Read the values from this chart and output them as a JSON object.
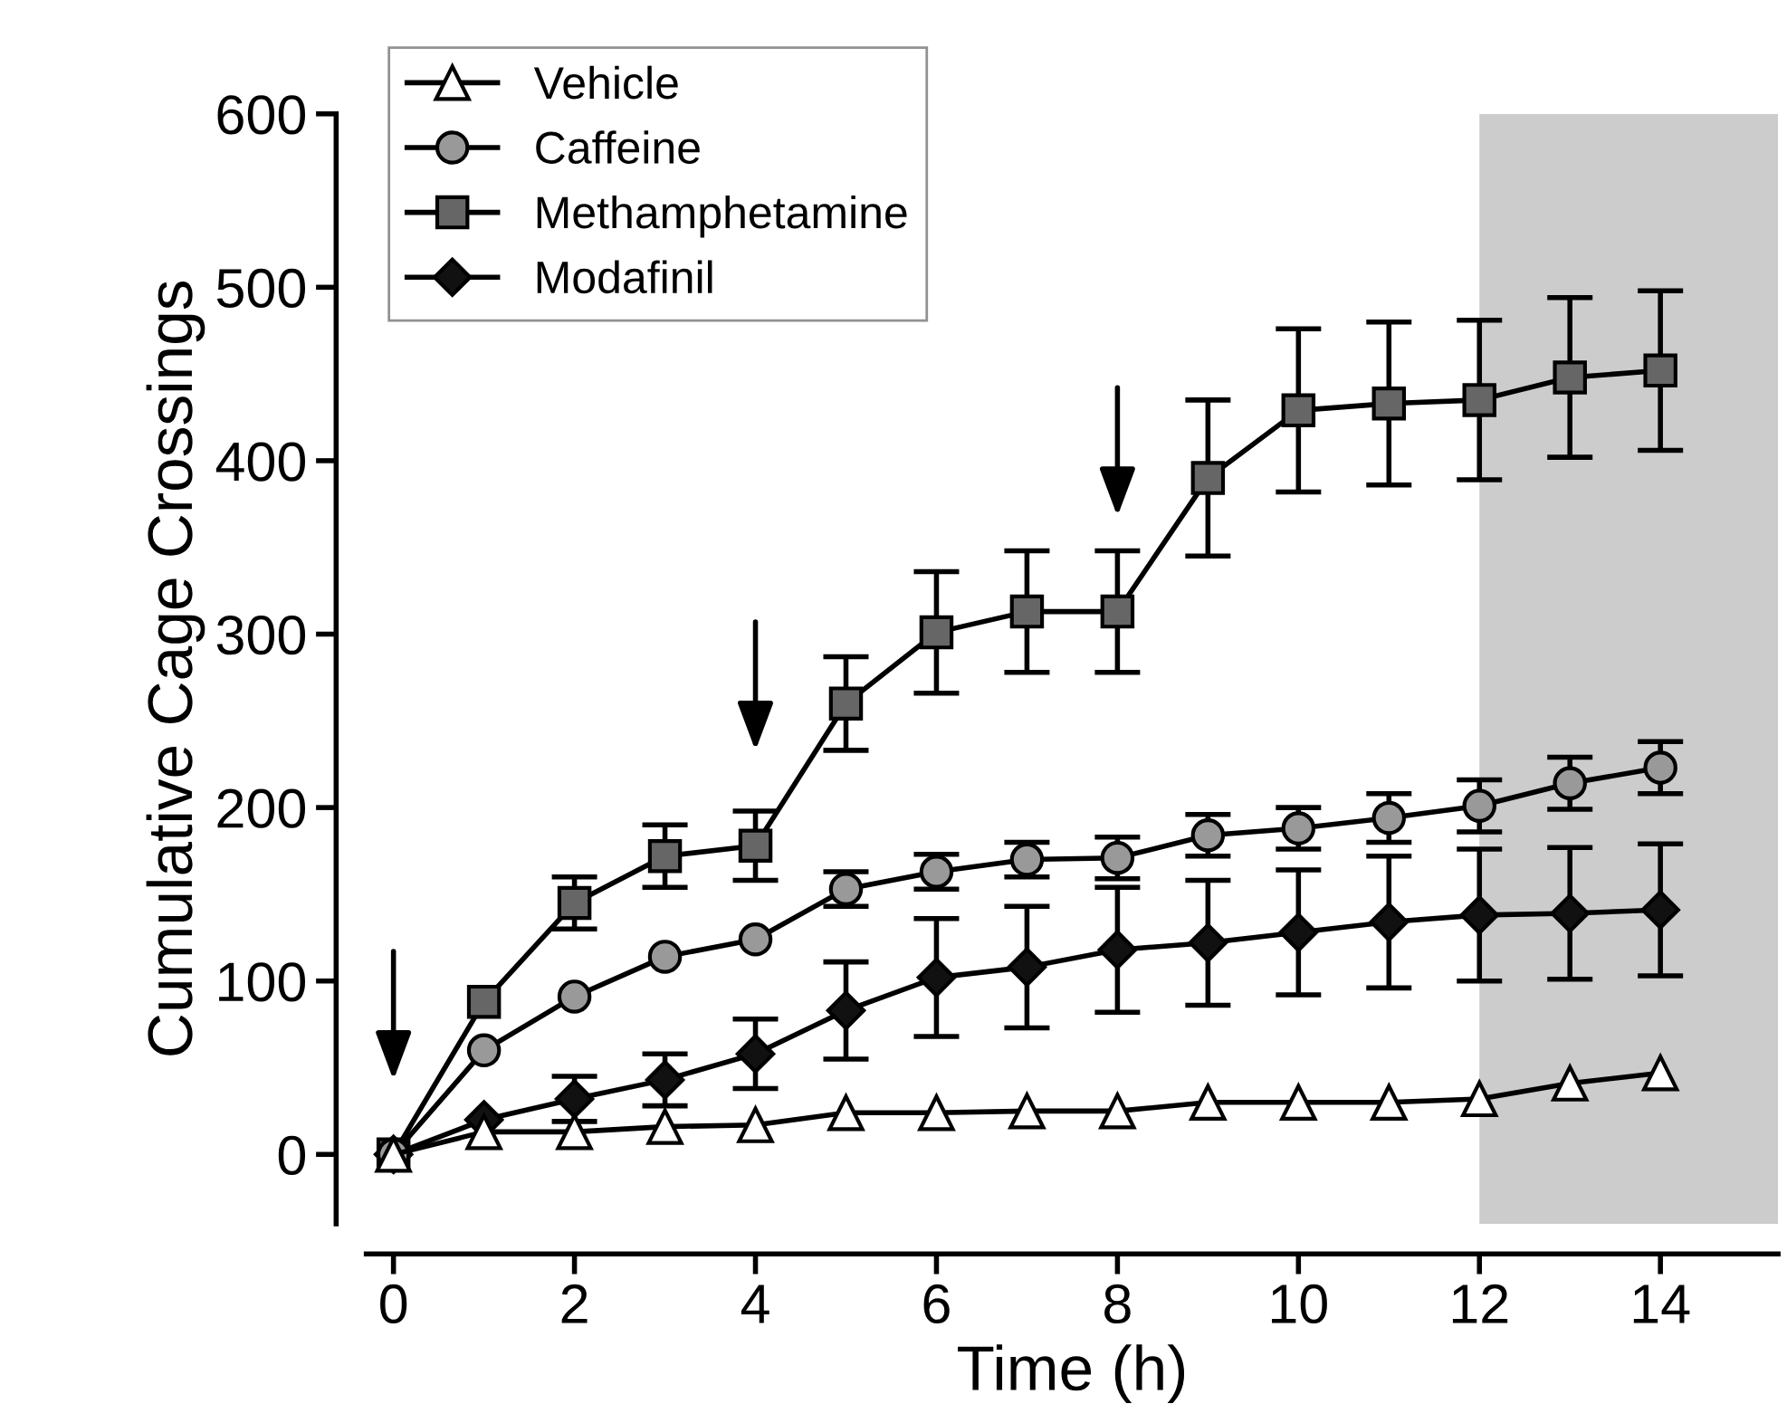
{
  "chart_data": {
    "type": "line",
    "xlabel": "Time (h)",
    "ylabel": "Cumulative Cage Crossings",
    "x": [
      0,
      1,
      2,
      3,
      4,
      5,
      6,
      7,
      8,
      9,
      10,
      11,
      12,
      13,
      14
    ],
    "series": [
      {
        "name": "Vehicle",
        "color": "#ffffff",
        "marker": "triangle",
        "values": [
          0,
          13,
          13,
          16,
          17,
          24,
          24,
          25,
          25,
          30,
          30,
          30,
          32,
          41,
          47
        ]
      },
      {
        "name": "Caffeine",
        "color": "#999999",
        "marker": "circle",
        "values": [
          0,
          60,
          91,
          114,
          124,
          153,
          163,
          170,
          171,
          184,
          188,
          194,
          201,
          214,
          223
        ],
        "errors": [
          null,
          null,
          null,
          null,
          null,
          10,
          10,
          10,
          12,
          12,
          12,
          14,
          15,
          15,
          15
        ]
      },
      {
        "name": "Methamphetamine",
        "color": "#666666",
        "marker": "square",
        "values": [
          0,
          88,
          145,
          172,
          178,
          260,
          301,
          313,
          313,
          390,
          429,
          433,
          435,
          448,
          452
        ],
        "errors": [
          null,
          null,
          15,
          18,
          20,
          27,
          35,
          35,
          35,
          45,
          47,
          47,
          46,
          46,
          46
        ]
      },
      {
        "name": "Modafinil",
        "color": "#111111",
        "marker": "diamond",
        "values": [
          0,
          20,
          32,
          43,
          58,
          83,
          102,
          108,
          118,
          122,
          128,
          134,
          138,
          139,
          141
        ],
        "errors": [
          null,
          null,
          13,
          15,
          20,
          28,
          34,
          35,
          36,
          36,
          36,
          38,
          38,
          38,
          38
        ]
      }
    ],
    "xlim": [
      -0.3,
      15.3
    ],
    "xticks": [
      0,
      2,
      4,
      6,
      8,
      10,
      12,
      14
    ],
    "ylim": [
      -40,
      600
    ],
    "yticks": [
      0,
      100,
      200,
      300,
      400,
      500,
      600
    ],
    "bands": [
      {
        "axis": "x",
        "from": 12,
        "to": 15.3,
        "color": "#cccccc"
      }
    ],
    "legend": "top left",
    "grid": false,
    "line_style": "solid"
  }
}
